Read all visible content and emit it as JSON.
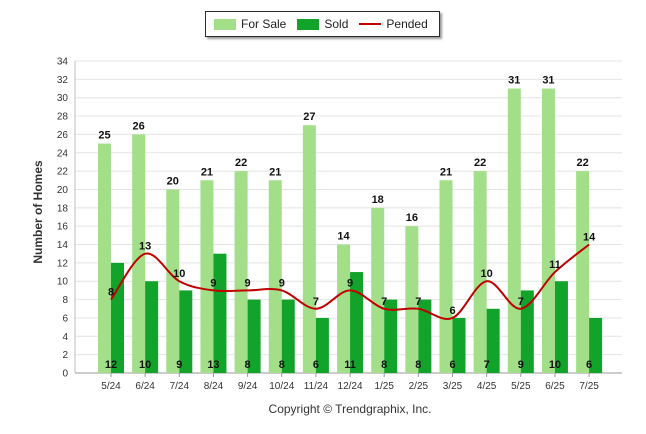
{
  "chart_data": {
    "type": "bar",
    "categories": [
      "5/24",
      "6/24",
      "7/24",
      "8/24",
      "9/24",
      "10/24",
      "11/24",
      "12/24",
      "1/25",
      "2/25",
      "3/25",
      "4/25",
      "5/25",
      "6/25",
      "7/25"
    ],
    "series": [
      {
        "name": "For Sale",
        "type": "bar",
        "color": "#a3df88",
        "values": [
          25,
          26,
          20,
          21,
          22,
          21,
          27,
          14,
          18,
          16,
          21,
          22,
          31,
          31,
          22
        ]
      },
      {
        "name": "Sold",
        "type": "bar",
        "color": "#12a32a",
        "values": [
          12,
          10,
          9,
          13,
          8,
          8,
          6,
          11,
          8,
          8,
          6,
          7,
          9,
          10,
          6
        ]
      },
      {
        "name": "Pended",
        "type": "line",
        "color": "#c00000",
        "values": [
          8,
          13,
          10,
          9,
          9,
          9,
          7,
          9,
          7,
          7,
          6,
          10,
          7,
          11,
          14
        ]
      }
    ],
    "ylabel": "Number of Homes",
    "ylim": [
      0,
      34
    ],
    "yticks": [
      0,
      2,
      4,
      6,
      8,
      10,
      12,
      14,
      16,
      18,
      20,
      22,
      24,
      26,
      28,
      30,
      32,
      34
    ],
    "grid": true,
    "legend_position": "top-center"
  },
  "copyright": "Copyright © Trendgraphix, Inc."
}
